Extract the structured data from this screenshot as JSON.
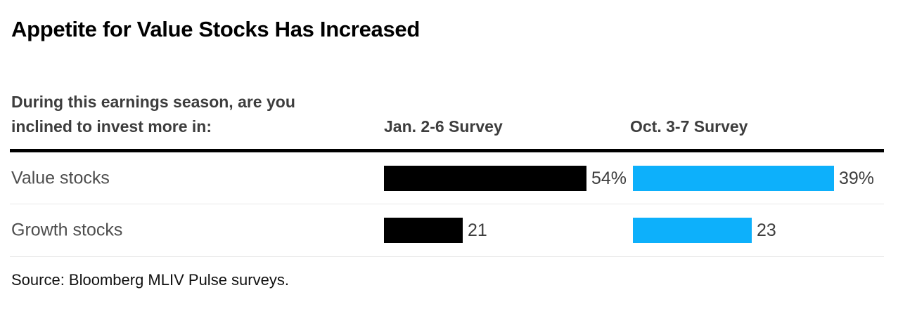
{
  "title": "Appetite for Value Stocks Has Increased",
  "question": {
    "line1": "During this earnings season, are you",
    "line2": "inclined to invest more in:"
  },
  "source": "Source: Bloomberg MLIV Pulse surveys.",
  "colors": {
    "jan_bar": "#000000",
    "oct_bar": "#0db0fb",
    "heading_text": "#3d3d3d",
    "row_label_text": "#4d4d4d",
    "divider": "#e8e8e8"
  },
  "chart_data": {
    "type": "bar",
    "orientation": "horizontal",
    "title": "Appetite for Value Stocks Has Increased",
    "subtitle": "During this earnings season, are you inclined to invest more in:",
    "categories": [
      "Value stocks",
      "Growth stocks"
    ],
    "series": [
      {
        "name": "Jan. 2-6 Survey",
        "color": "#000000",
        "values": [
          54,
          21
        ],
        "labels": [
          "54%",
          "21"
        ]
      },
      {
        "name": "Oct. 3-7 Survey",
        "color": "#0db0fb",
        "values": [
          39,
          23
        ],
        "labels": [
          "39%",
          "23"
        ]
      }
    ],
    "legend_position": "column-headers",
    "grid": false,
    "source": "Source: Bloomberg MLIV Pulse surveys."
  }
}
